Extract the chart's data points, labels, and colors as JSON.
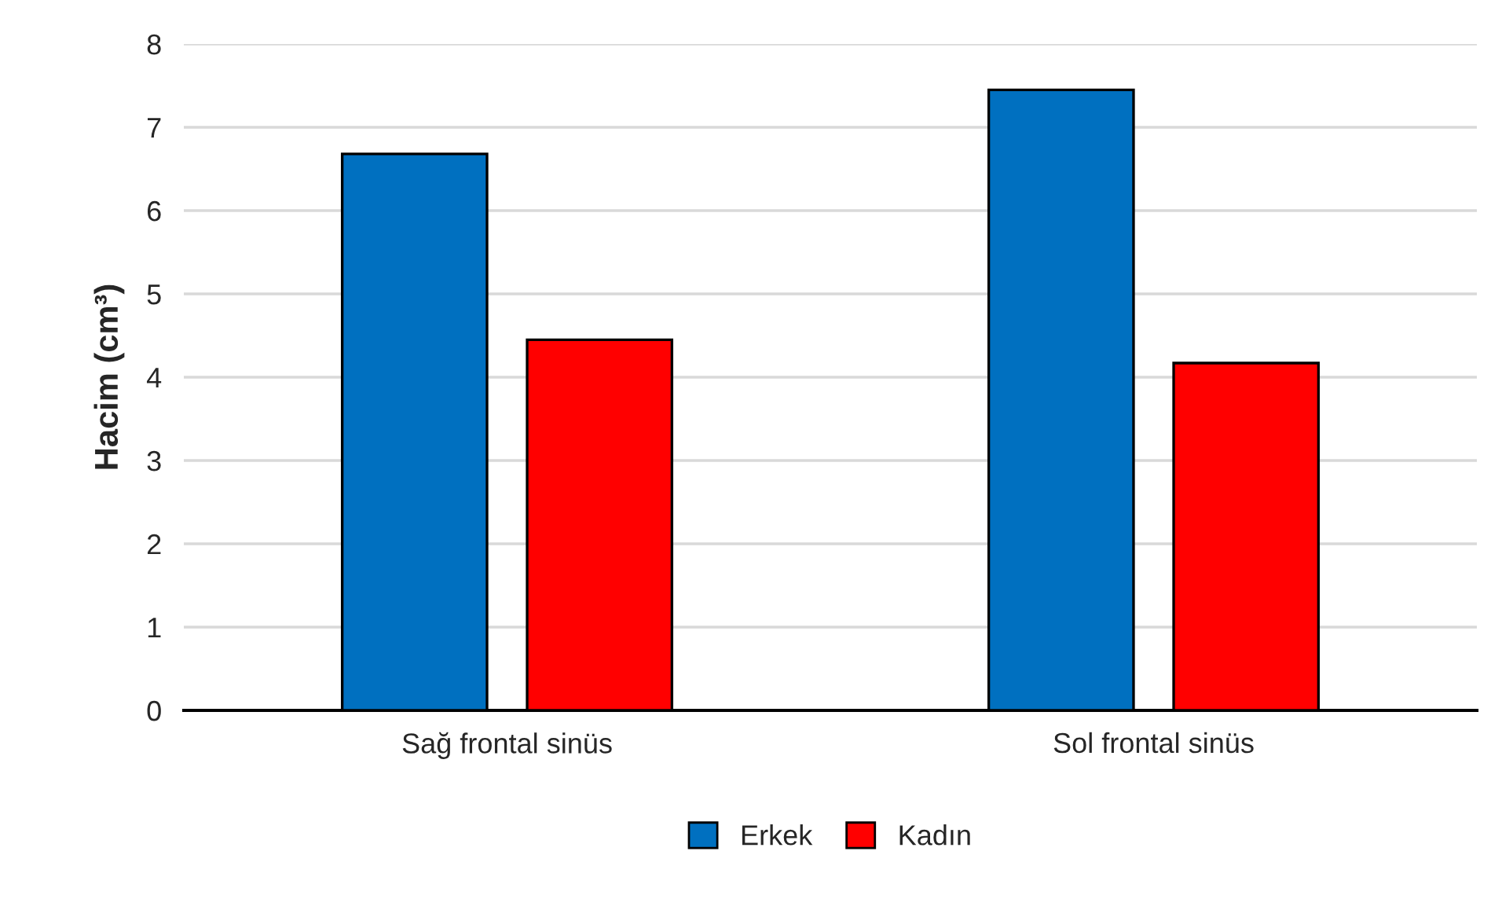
{
  "chart_data": {
    "type": "bar",
    "ylabel": "Hacim (cm³)",
    "categories": [
      "Sağ frontal sinüs",
      "Sol frontal sinüs"
    ],
    "series": [
      {
        "name": "Erkek",
        "color": "#0070c0",
        "values": [
          6.68,
          7.45
        ]
      },
      {
        "name": "Kadın",
        "color": "#ff0000",
        "values": [
          4.45,
          4.17
        ]
      }
    ],
    "ylim": [
      0,
      8
    ],
    "yticks": [
      0,
      1,
      2,
      3,
      4,
      5,
      6,
      7,
      8
    ],
    "grid": "y",
    "legend": "bottom"
  }
}
